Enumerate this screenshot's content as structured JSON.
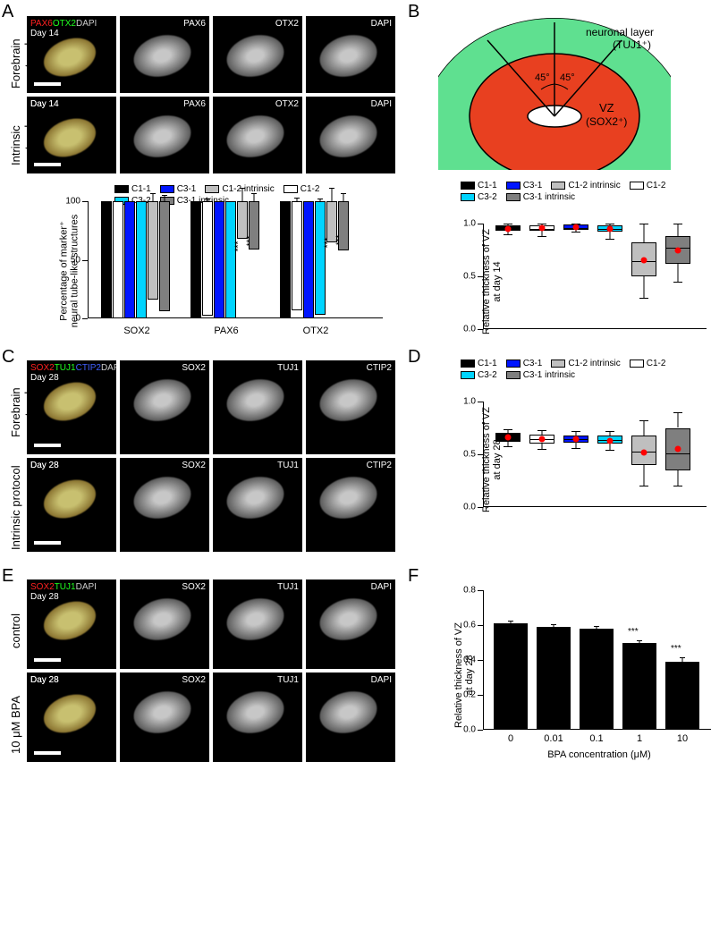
{
  "labels": {
    "A": "A",
    "B": "B",
    "C": "C",
    "D": "D",
    "E": "E",
    "F": "F"
  },
  "panelA": {
    "row1_label": "Forebrain\nprotocol",
    "row2_label": "Intrinsic\nprotocol",
    "header_markers": {
      "red": "PAX6",
      "green": "OTX2",
      "grey": "DAPI"
    },
    "day": "Day 14",
    "channels": [
      "PAX6",
      "OTX2",
      "DAPI"
    ],
    "bar": {
      "ylabel": "Percentage of marker⁺\nneural tube-like structures",
      "ylim": [
        0,
        100
      ],
      "ytick_step": 50,
      "groups": [
        "SOX2",
        "PAX6",
        "OTX2"
      ],
      "series": [
        {
          "name": "C1-1",
          "color": "#000000",
          "vals": [
            100,
            100,
            100
          ]
        },
        {
          "name": "C1-2",
          "color": "#ffffff",
          "vals": [
            100,
            98,
            93
          ]
        },
        {
          "name": "C3-1",
          "color": "#0015ff",
          "vals": [
            100,
            100,
            100
          ]
        },
        {
          "name": "C3-2",
          "color": "#00d4ff",
          "vals": [
            100,
            100,
            97
          ]
        },
        {
          "name": "C1-2 intrinsic",
          "color": "#bfbfbf",
          "vals": [
            84,
            32,
            35
          ]
        },
        {
          "name": "C3-1 intrinsic",
          "color": "#7f7f7f",
          "vals": [
            94,
            41,
            42
          ]
        }
      ],
      "errors": [
        [
          0,
          0,
          0,
          0,
          8,
          6
        ],
        [
          0,
          3,
          0,
          0,
          12,
          8
        ],
        [
          0,
          4,
          0,
          3,
          12,
          8
        ]
      ],
      "sig": {
        "PAX6": [
          4,
          5
        ],
        "OTX2": [
          4,
          5
        ]
      },
      "sig_text": "***"
    }
  },
  "legend6": [
    {
      "name": "C1-1",
      "color": "#000000"
    },
    {
      "name": "C3-1",
      "color": "#0015ff"
    },
    {
      "name": "C1-2 intrinsic",
      "color": "#bfbfbf"
    },
    {
      "name": "C1-2",
      "color": "#ffffff"
    },
    {
      "name": "C3-2",
      "color": "#00d4ff"
    },
    {
      "name": "C3-1 intrinsic",
      "color": "#7f7f7f"
    }
  ],
  "panelB": {
    "schematic": {
      "outer_color": "#5fe090",
      "inner_color": "#e84020",
      "lumen_color": "#ffffff",
      "angle": "45°",
      "label_outer": "neuronal layer\n(TUJ1⁺)",
      "label_inner": "VZ\n(SOX2⁺)"
    },
    "ylabel": "Relative thickness of VZ\nat day 14",
    "ylim": [
      0,
      1.0
    ],
    "yticks": [
      0.0,
      0.5,
      1.0
    ],
    "boxes": [
      {
        "color": "#000000",
        "q1": 0.93,
        "med": 0.96,
        "q3": 0.98,
        "lo": 0.9,
        "hi": 1.0,
        "mean": 0.95
      },
      {
        "color": "#ffffff",
        "q1": 0.93,
        "med": 0.96,
        "q3": 0.98,
        "lo": 0.88,
        "hi": 1.0,
        "mean": 0.96
      },
      {
        "color": "#0015ff",
        "q1": 0.94,
        "med": 0.97,
        "q3": 0.99,
        "lo": 0.92,
        "hi": 1.0,
        "mean": 0.97
      },
      {
        "color": "#00d4ff",
        "q1": 0.92,
        "med": 0.96,
        "q3": 0.98,
        "lo": 0.86,
        "hi": 1.0,
        "mean": 0.95
      },
      {
        "color": "#bfbfbf",
        "q1": 0.5,
        "med": 0.65,
        "q3": 0.82,
        "lo": 0.3,
        "hi": 1.0,
        "mean": 0.65
      },
      {
        "color": "#7f7f7f",
        "q1": 0.62,
        "med": 0.78,
        "q3": 0.88,
        "lo": 0.45,
        "hi": 1.0,
        "mean": 0.75
      }
    ]
  },
  "panelC": {
    "header_markers": {
      "red": "SOX2",
      "green": "TUJ1",
      "blue": "CTIP2",
      "grey": "DAPI"
    },
    "day": "Day 28",
    "row1_label": "Forebrain\nprotocol",
    "row2_label": "Intrinsic\nprotocol",
    "channels": [
      "SOX2",
      "TUJ1",
      "CTIP2"
    ]
  },
  "panelD": {
    "ylabel": "Relative thickness of VZ\nat day 28",
    "ylim": [
      0,
      1.0
    ],
    "yticks": [
      0.0,
      0.5,
      1.0
    ],
    "boxes": [
      {
        "color": "#000000",
        "q1": 0.62,
        "med": 0.67,
        "q3": 0.7,
        "lo": 0.58,
        "hi": 0.74,
        "mean": 0.66
      },
      {
        "color": "#ffffff",
        "q1": 0.6,
        "med": 0.65,
        "q3": 0.69,
        "lo": 0.55,
        "hi": 0.73,
        "mean": 0.64
      },
      {
        "color": "#0015ff",
        "q1": 0.61,
        "med": 0.65,
        "q3": 0.68,
        "lo": 0.56,
        "hi": 0.72,
        "mean": 0.64
      },
      {
        "color": "#00d4ff",
        "q1": 0.6,
        "med": 0.64,
        "q3": 0.68,
        "lo": 0.54,
        "hi": 0.72,
        "mean": 0.63
      },
      {
        "color": "#bfbfbf",
        "q1": 0.4,
        "med": 0.53,
        "q3": 0.68,
        "lo": 0.2,
        "hi": 0.82,
        "mean": 0.52
      },
      {
        "color": "#7f7f7f",
        "q1": 0.35,
        "med": 0.52,
        "q3": 0.75,
        "lo": 0.2,
        "hi": 0.9,
        "mean": 0.55
      }
    ]
  },
  "panelE": {
    "header_markers": {
      "red": "SOX2",
      "green": "TUJ1",
      "grey": "DAPI"
    },
    "day": "Day 28",
    "row1_label": "control",
    "row2_label": "10 μM BPA",
    "channels": [
      "SOX2",
      "TUJ1",
      "DAPI"
    ]
  },
  "panelF": {
    "ylabel": "Relative thickness of VZ\nat day 28",
    "xlabel": "BPA concentration (μM)",
    "ylim": [
      0,
      0.8
    ],
    "yticks": [
      0.0,
      0.2,
      0.4,
      0.6,
      0.8
    ],
    "categories": [
      "0",
      "0.01",
      "0.1",
      "1",
      "10"
    ],
    "values": [
      0.61,
      0.59,
      0.58,
      0.5,
      0.39
    ],
    "errors": [
      0.02,
      0.02,
      0.02,
      0.02,
      0.03
    ],
    "bar_color": "#000000",
    "sig": [
      3,
      4
    ],
    "sig_text": "***"
  }
}
